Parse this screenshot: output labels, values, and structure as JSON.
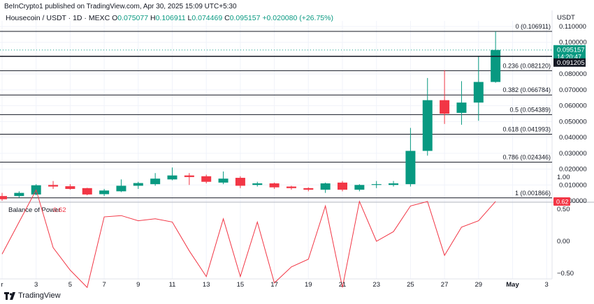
{
  "header": {
    "published_line": "BeInCrypto1 published on TradingView.com, Apr 30, 2025 15:09 UTC+5:30",
    "symbol_title": "Housecoin / USDT · 1D · MEXC",
    "ohlc": [
      {
        "k": "O",
        "v": "0.075077"
      },
      {
        "k": "H",
        "v": "0.106911"
      },
      {
        "k": "L",
        "v": "0.074469"
      },
      {
        "k": "C",
        "v": "0.095157"
      }
    ],
    "change": "+0.020080 (+26.75%)"
  },
  "footer": {
    "brand": "TradingView"
  },
  "colors": {
    "up": "#089981",
    "down": "#f23645",
    "bop": "#f23645",
    "fib": "#131722",
    "grid": "#f0f3fa"
  },
  "chart_data": [
    {
      "type": "candlestick",
      "currency_label": "USDT",
      "ylim": [
        0,
        0.11
      ],
      "y_ticks": [
        "0.000000",
        "0.010000",
        "0.020000",
        "0.030000",
        "0.040000",
        "0.050000",
        "0.060000",
        "0.070000",
        "0.080000",
        "0.100000",
        "0.110000"
      ],
      "y_tick_values": [
        0,
        0.01,
        0.02,
        0.03,
        0.04,
        0.05,
        0.06,
        0.07,
        0.08,
        0.1,
        0.11
      ],
      "x_tick_labels": [
        {
          "day": 1,
          "label": "r"
        },
        {
          "day": 3,
          "label": "3"
        },
        {
          "day": 5,
          "label": "5"
        },
        {
          "day": 7,
          "label": "7"
        },
        {
          "day": 9,
          "label": "9"
        },
        {
          "day": 11,
          "label": "11"
        },
        {
          "day": 13,
          "label": "13"
        },
        {
          "day": 15,
          "label": "15"
        },
        {
          "day": 17,
          "label": "17"
        },
        {
          "day": 19,
          "label": "19"
        },
        {
          "day": 21,
          "label": "21"
        },
        {
          "day": 23,
          "label": "23"
        },
        {
          "day": 25,
          "label": "25"
        },
        {
          "day": 27,
          "label": "27"
        },
        {
          "day": 29,
          "label": "29"
        },
        {
          "day": 31,
          "label": "May"
        },
        {
          "day": 33,
          "label": "3"
        }
      ],
      "candles": [
        {
          "day": 1,
          "o": 0.003,
          "h": 0.005,
          "l": 0.0,
          "c": 0.001
        },
        {
          "day": 2,
          "o": 0.003,
          "h": 0.006,
          "l": 0.002,
          "c": 0.005
        },
        {
          "day": 3,
          "o": 0.004,
          "h": 0.0105,
          "l": 0.0035,
          "c": 0.0098
        },
        {
          "day": 4,
          "o": 0.01,
          "h": 0.0125,
          "l": 0.0075,
          "c": 0.009
        },
        {
          "day": 5,
          "o": 0.0092,
          "h": 0.0105,
          "l": 0.007,
          "c": 0.0075
        },
        {
          "day": 6,
          "o": 0.008,
          "h": 0.0082,
          "l": 0.0035,
          "c": 0.004
        },
        {
          "day": 7,
          "o": 0.0042,
          "h": 0.0075,
          "l": 0.003,
          "c": 0.0065
        },
        {
          "day": 8,
          "o": 0.006,
          "h": 0.0135,
          "l": 0.0055,
          "c": 0.0095
        },
        {
          "day": 9,
          "o": 0.0095,
          "h": 0.012,
          "l": 0.0075,
          "c": 0.0112
        },
        {
          "day": 10,
          "o": 0.0105,
          "h": 0.0175,
          "l": 0.0095,
          "c": 0.014
        },
        {
          "day": 11,
          "o": 0.0135,
          "h": 0.021,
          "l": 0.013,
          "c": 0.016
        },
        {
          "day": 12,
          "o": 0.016,
          "h": 0.0175,
          "l": 0.01,
          "c": 0.015
        },
        {
          "day": 13,
          "o": 0.0155,
          "h": 0.0165,
          "l": 0.011,
          "c": 0.012
        },
        {
          "day": 14,
          "o": 0.0115,
          "h": 0.0185,
          "l": 0.0105,
          "c": 0.014
        },
        {
          "day": 15,
          "o": 0.0145,
          "h": 0.0155,
          "l": 0.008,
          "c": 0.0095
        },
        {
          "day": 16,
          "o": 0.01,
          "h": 0.012,
          "l": 0.009,
          "c": 0.011
        },
        {
          "day": 17,
          "o": 0.011,
          "h": 0.0115,
          "l": 0.0075,
          "c": 0.0085
        },
        {
          "day": 18,
          "o": 0.009,
          "h": 0.0095,
          "l": 0.007,
          "c": 0.008
        },
        {
          "day": 19,
          "o": 0.008,
          "h": 0.0085,
          "l": 0.006,
          "c": 0.007
        },
        {
          "day": 20,
          "o": 0.007,
          "h": 0.0115,
          "l": 0.005,
          "c": 0.011
        },
        {
          "day": 21,
          "o": 0.0115,
          "h": 0.0125,
          "l": 0.006,
          "c": 0.007
        },
        {
          "day": 22,
          "o": 0.007,
          "h": 0.0105,
          "l": 0.006,
          "c": 0.01
        },
        {
          "day": 23,
          "o": 0.01,
          "h": 0.0125,
          "l": 0.008,
          "c": 0.0105
        },
        {
          "day": 24,
          "o": 0.01,
          "h": 0.0125,
          "l": 0.009,
          "c": 0.011
        },
        {
          "day": 25,
          "o": 0.0105,
          "h": 0.046,
          "l": 0.009,
          "c": 0.0315
        },
        {
          "day": 26,
          "o": 0.0315,
          "h": 0.0775,
          "l": 0.0285,
          "c": 0.0635
        },
        {
          "day": 27,
          "o": 0.0635,
          "h": 0.0825,
          "l": 0.0485,
          "c": 0.055
        },
        {
          "day": 28,
          "o": 0.0555,
          "h": 0.0755,
          "l": 0.048,
          "c": 0.062
        },
        {
          "day": 29,
          "o": 0.062,
          "h": 0.0915,
          "l": 0.0505,
          "c": 0.075
        },
        {
          "day": 30,
          "o": 0.075,
          "h": 0.1069,
          "l": 0.0745,
          "c": 0.0952
        }
      ],
      "fib_levels": [
        {
          "ratio": 0,
          "value": 0.106911,
          "label": "0 (0.106911)"
        },
        {
          "ratio": 0.236,
          "value": 0.08212,
          "label": "0.236 (0.082120)"
        },
        {
          "ratio": 0.382,
          "value": 0.066784,
          "label": "0.382 (0.066784)"
        },
        {
          "ratio": 0.5,
          "value": 0.054389,
          "label": "0.5 (0.054389)"
        },
        {
          "ratio": 0.618,
          "value": 0.041993,
          "label": "0.618 (0.041993)"
        },
        {
          "ratio": 0.786,
          "value": 0.024346,
          "label": "0.786 (0.024346)"
        },
        {
          "ratio": 1,
          "value": 0.001866,
          "label": "1 (0.001866)"
        }
      ],
      "price_line": {
        "value": 0.091205,
        "label": "0.091205"
      },
      "last_price": {
        "value": 0.095157,
        "label": "0.095157",
        "countdown": "14:20:47"
      }
    },
    {
      "type": "line",
      "title": "Balance of Power",
      "current_value": "0.62",
      "ylim": [
        -0.9,
        1.0
      ],
      "y_ticks": [
        "1.00",
        "0.50",
        "0.00",
        "−0.50"
      ],
      "y_tick_values": [
        1.0,
        0.5,
        0.0,
        -0.5
      ],
      "x": [
        1,
        2,
        3,
        4,
        5,
        6,
        7,
        8,
        9,
        10,
        11,
        12,
        13,
        14,
        15,
        16,
        17,
        18,
        19,
        20,
        21,
        22,
        23,
        24,
        25,
        26,
        27,
        28,
        29,
        30
      ],
      "values": [
        -0.2,
        0.3,
        0.8,
        -0.1,
        -0.45,
        -0.72,
        0.38,
        0.4,
        0.32,
        0.35,
        0.3,
        -0.15,
        -0.55,
        0.35,
        -0.55,
        0.3,
        -0.65,
        -0.4,
        -0.28,
        0.55,
        -0.72,
        0.62,
        0.0,
        0.15,
        0.55,
        0.62,
        -0.22,
        0.22,
        0.32,
        0.62
      ]
    }
  ]
}
